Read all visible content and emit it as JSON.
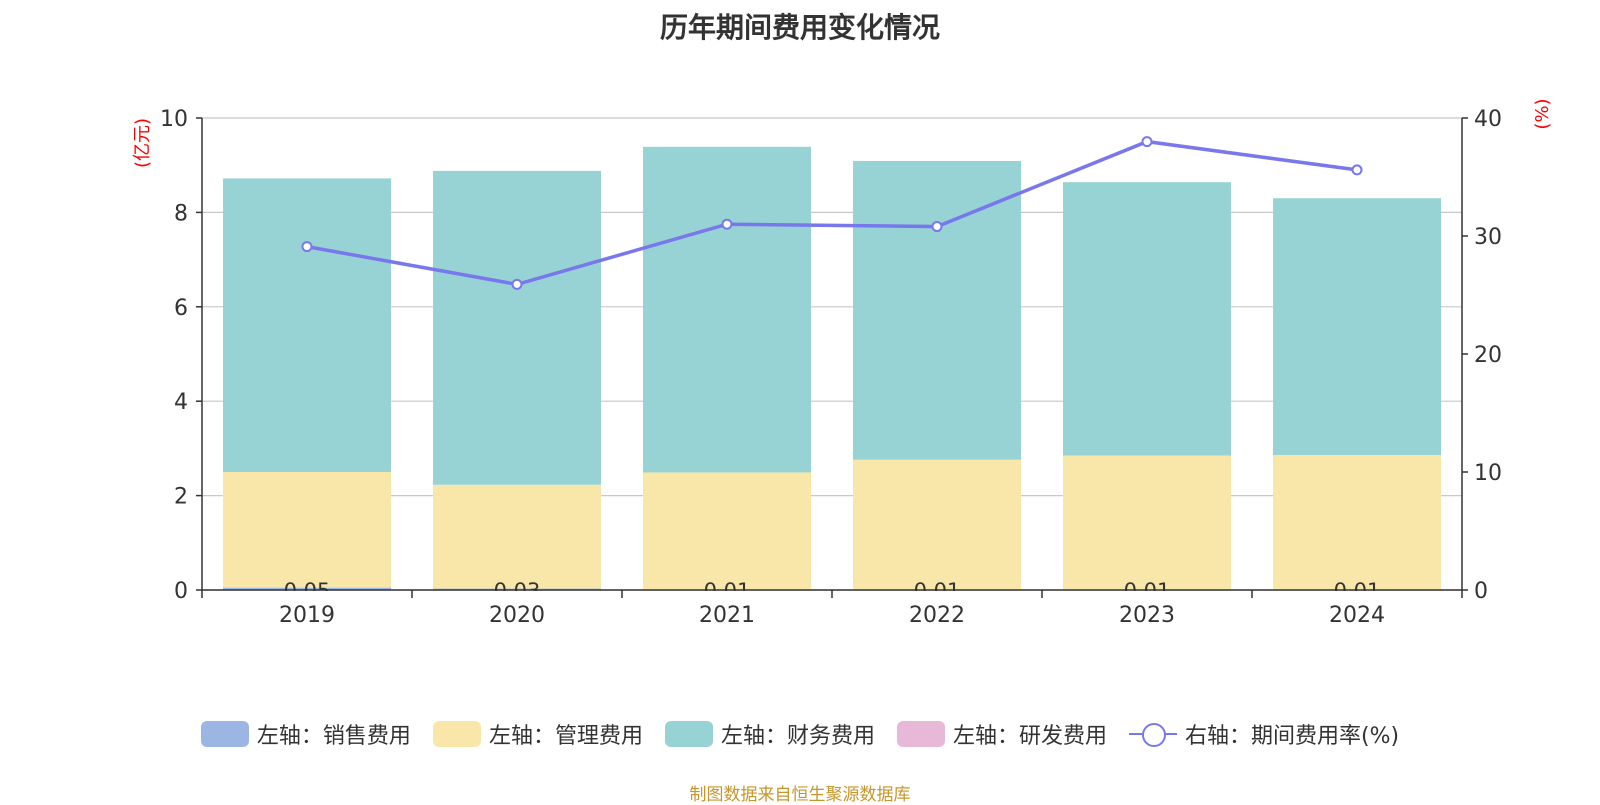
{
  "chart_data": {
    "type": "bar",
    "title": "历年期间费用变化情况",
    "categories": [
      "2019",
      "2020",
      "2021",
      "2022",
      "2023",
      "2024"
    ],
    "left_axis": {
      "label": "(亿元)",
      "ylim": [
        0,
        10
      ],
      "ticks": [
        "0",
        "2",
        "4",
        "6",
        "8",
        "10"
      ]
    },
    "right_axis": {
      "label": "(%)",
      "ylim": [
        0,
        40
      ],
      "ticks": [
        "0",
        "10",
        "20",
        "30",
        "40"
      ]
    },
    "stacked": true,
    "grid": true,
    "legend_position": "bottom",
    "series": [
      {
        "name": "左轴：销售费用",
        "axis": "left",
        "type": "bar",
        "color": "#9bb6e2",
        "values": [
          0.05,
          0.03,
          0.01,
          0.01,
          0.01,
          0.01
        ],
        "labels": [
          "0.05",
          "0.03",
          "0.01",
          "0.01",
          "0.01",
          "0.01"
        ]
      },
      {
        "name": "左轴：管理费用",
        "axis": "left",
        "type": "bar",
        "color": "#f8e7a9",
        "values": [
          2.45,
          2.2,
          2.48,
          2.75,
          2.84,
          2.85
        ]
      },
      {
        "name": "左轴：财务费用",
        "axis": "left",
        "type": "bar",
        "color": "#97d3d4",
        "values": [
          6.22,
          6.65,
          6.9,
          6.33,
          5.79,
          5.44
        ]
      },
      {
        "name": "左轴：研发费用",
        "axis": "left",
        "type": "bar",
        "color": "#e8b8d9",
        "values": [
          0,
          0,
          0,
          0,
          0,
          0
        ]
      },
      {
        "name": "右轴：期间费用率(%)",
        "axis": "right",
        "type": "line",
        "color": "#7878ec",
        "values": [
          29.1,
          25.9,
          31.0,
          30.8,
          38.0,
          35.6
        ]
      }
    ],
    "axis_label_color": "#ff0000",
    "source": "制图数据来自恒生聚源数据库",
    "source_color": "#c8952a"
  }
}
